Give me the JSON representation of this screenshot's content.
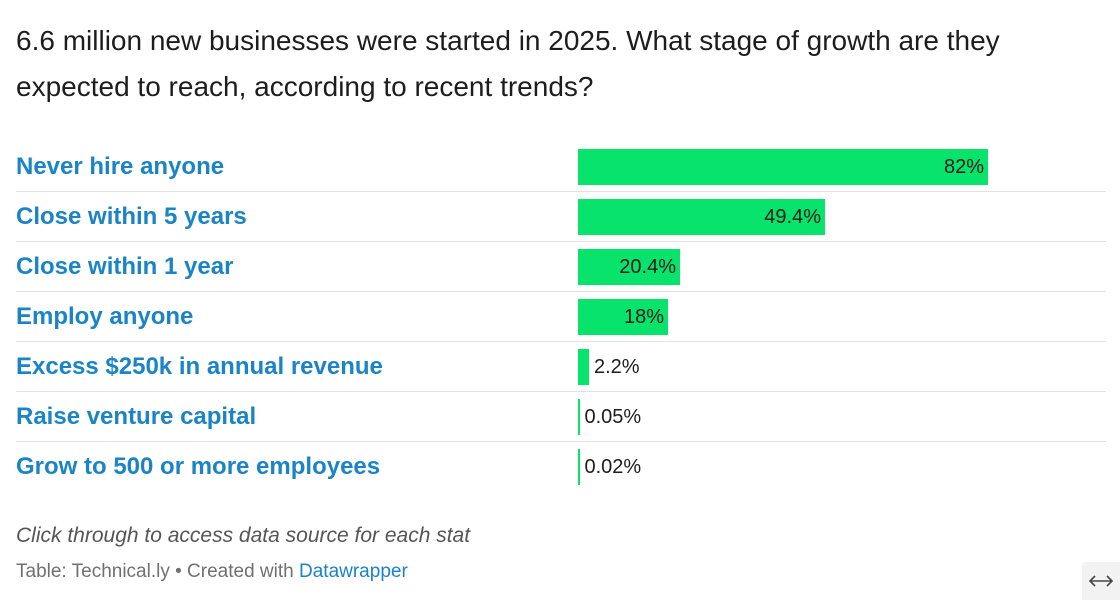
{
  "chart_data": {
    "type": "bar",
    "title": "6.6 million new businesses were started in 2025. What stage of growth are they expected to reach, according to recent trends?",
    "categories": [
      "Never hire anyone",
      "Close within 5 years",
      "Close within 1 year",
      "Employ anyone",
      "Excess $250k in annual revenue",
      "Raise venture capital",
      "Grow to 500 or more employees"
    ],
    "values": [
      82,
      49.4,
      20.4,
      18,
      2.2,
      0.05,
      0.02
    ],
    "value_labels": [
      "82%",
      "49.4%",
      "20.4%",
      "18%",
      "2.2%",
      "0.05%",
      "0.02%"
    ],
    "unit": "%",
    "xlim": [
      0,
      100
    ],
    "orientation": "horizontal",
    "bar_color": "#07e36b",
    "label_color": "#1a84c6"
  },
  "notes": "Click through to access data source for each stat",
  "footer": {
    "source_prefix": "Table: Technical.ly • Created with ",
    "tool_link": "Datawrapper"
  },
  "icons": {
    "expand": "expand-horizontal-arrows-icon"
  }
}
